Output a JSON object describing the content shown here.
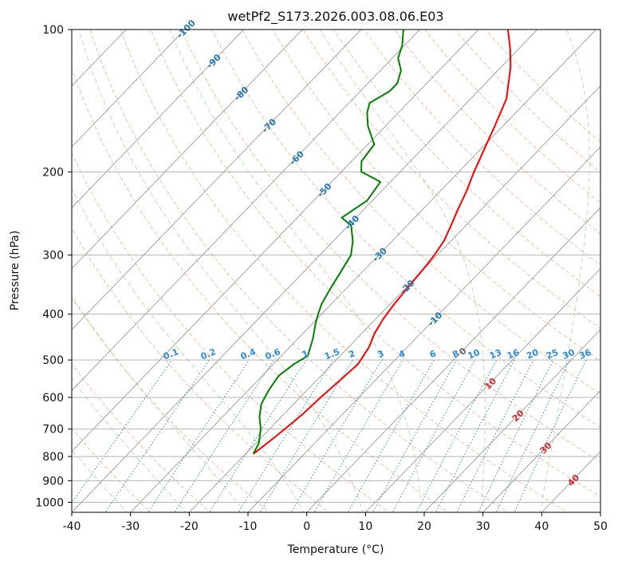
{
  "chart_data": {
    "type": "line",
    "title": "wetPf2_S173.2026.003.08.06.E03",
    "xlabel": "Temperature (°C)",
    "ylabel": "Pressure (hPa)",
    "xlim": [
      -40,
      50
    ],
    "ylim": [
      1050,
      100
    ],
    "y_scale": "log",
    "x_ticks": [
      -40,
      -30,
      -20,
      -10,
      0,
      10,
      20,
      30,
      40,
      50
    ],
    "y_ticks": [
      100,
      200,
      300,
      400,
      500,
      600,
      700,
      800,
      900,
      1000
    ],
    "grid": true,
    "skew": "skew-T log-P",
    "series": [
      {
        "color": "#ff0000",
        "points": [
          [
            -18.7,
            790
          ],
          [
            -17.8,
            730
          ],
          [
            -17.3,
            690
          ],
          [
            -16.8,
            650
          ],
          [
            -16.5,
            600
          ],
          [
            -16.0,
            550
          ],
          [
            -15.6,
            510
          ],
          [
            -16.5,
            470
          ],
          [
            -17.8,
            440
          ],
          [
            -18.7,
            410
          ],
          [
            -19.3,
            380
          ],
          [
            -19.7,
            350
          ],
          [
            -20.1,
            320
          ],
          [
            -20.5,
            300
          ],
          [
            -21.2,
            280
          ],
          [
            -22.5,
            260
          ],
          [
            -24.0,
            240
          ],
          [
            -25.5,
            220
          ],
          [
            -27.4,
            200
          ],
          [
            -29.3,
            180
          ],
          [
            -31.4,
            160
          ],
          [
            -33.9,
            140
          ],
          [
            -38.4,
            120
          ],
          [
            -41.4,
            110
          ],
          [
            -45.0,
            100
          ]
        ]
      },
      {
        "color": "#008000",
        "points": [
          [
            -18.7,
            790
          ],
          [
            -19.5,
            750
          ],
          [
            -21.5,
            700
          ],
          [
            -23.7,
            660
          ],
          [
            -25.5,
            620
          ],
          [
            -26.5,
            580
          ],
          [
            -27.2,
            540
          ],
          [
            -26.5,
            510
          ],
          [
            -25.5,
            490
          ],
          [
            -27.5,
            450
          ],
          [
            -29.4,
            420
          ],
          [
            -30.6,
            400
          ],
          [
            -31.7,
            380
          ],
          [
            -32.8,
            350
          ],
          [
            -33.9,
            320
          ],
          [
            -34.7,
            300
          ],
          [
            -36.7,
            280
          ],
          [
            -39.5,
            260
          ],
          [
            -42.4,
            250
          ],
          [
            -40.9,
            230
          ],
          [
            -41.7,
            210
          ],
          [
            -46.6,
            200
          ],
          [
            -48.3,
            190
          ],
          [
            -48.9,
            175
          ],
          [
            -53.0,
            160
          ],
          [
            -55.3,
            150
          ],
          [
            -56.5,
            143
          ],
          [
            -55.0,
            135
          ],
          [
            -55.0,
            130
          ],
          [
            -56.5,
            122
          ],
          [
            -59.0,
            115
          ],
          [
            -60.4,
            108
          ],
          [
            -62.8,
            100
          ]
        ]
      }
    ],
    "dry_adiabats_theta_C": [
      -30,
      -20,
      -10,
      0,
      10,
      20,
      30,
      40,
      50,
      60,
      70,
      80,
      90,
      100,
      110,
      120,
      130,
      140,
      150,
      160
    ],
    "moist_adiabats_C": [
      -30,
      -20,
      -10,
      0,
      10,
      20,
      30,
      40
    ],
    "mixing_ratio_labels": [
      "0.1",
      "0.2",
      "0.4",
      "0.6",
      "1",
      "1.5",
      "2",
      "3",
      "4",
      "6",
      "8",
      "10",
      "13",
      "16",
      "20",
      "25",
      "30",
      "36"
    ],
    "isotherm_labels_blue": [
      "-100",
      "-90",
      "-80",
      "-70",
      "-60",
      "-50",
      "-40",
      "-30",
      "-20",
      "-10"
    ],
    "isotherm_labels_gray": [
      "0"
    ],
    "isotherm_labels_red": [
      "10",
      "20",
      "30",
      "40"
    ]
  }
}
